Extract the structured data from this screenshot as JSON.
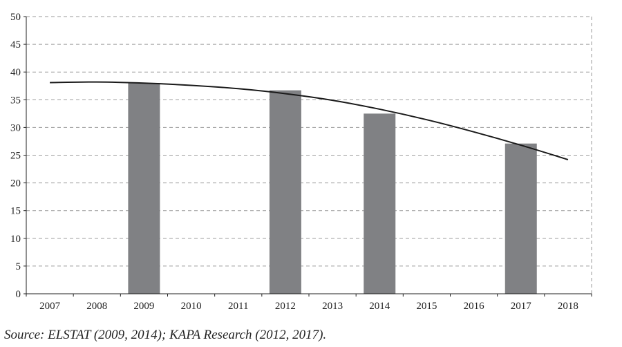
{
  "chart_data": {
    "type": "bar",
    "categories": [
      "2007",
      "2008",
      "2009",
      "2010",
      "2011",
      "2012",
      "2013",
      "2014",
      "2015",
      "2016",
      "2017",
      "2018"
    ],
    "series": [
      {
        "type": "bar",
        "values": [
          null,
          null,
          38.0,
          null,
          null,
          36.7,
          null,
          32.5,
          null,
          null,
          27.1,
          null
        ],
        "color": "#808184"
      },
      {
        "type": "line",
        "values": [
          38.1,
          38.2,
          38.0,
          37.6,
          37.0,
          36.1,
          34.9,
          33.3,
          31.4,
          29.2,
          26.8,
          24.2
        ],
        "color": "#1a1a1a"
      }
    ],
    "ylim": [
      0,
      50
    ],
    "yticks": [
      0,
      5,
      10,
      15,
      20,
      25,
      30,
      35,
      40,
      45,
      50
    ],
    "grid": true,
    "title": "",
    "xlabel": "",
    "ylabel": ""
  },
  "source_note": "Source: ELSTAT (2009, 2014); KAPA Research (2012, 2017)."
}
